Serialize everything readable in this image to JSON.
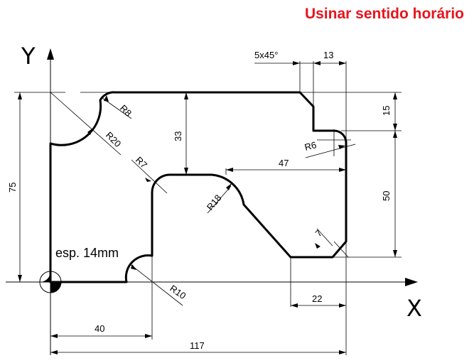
{
  "title": "Usinar sentido horário",
  "colors": {
    "title": "#e8141c",
    "outline": "#000000",
    "lines": "#000000",
    "background": "#ffffff"
  },
  "axes": {
    "x_label": "X",
    "y_label": "Y"
  },
  "note": "esp. 14mm",
  "dimensions": {
    "chamfer": "5x45°",
    "top_right_width": "13",
    "top_right_height": "15",
    "right_height": "50",
    "total_height": "75",
    "depth": "33",
    "length_47": "47",
    "width_22": "22",
    "width_40": "40",
    "total_width": "117",
    "chamfer_7": "7"
  },
  "radii": {
    "r8": "R8",
    "r20": "R20",
    "r7": "R7",
    "r18": "R18",
    "r6": "R6",
    "r10": "R10"
  }
}
